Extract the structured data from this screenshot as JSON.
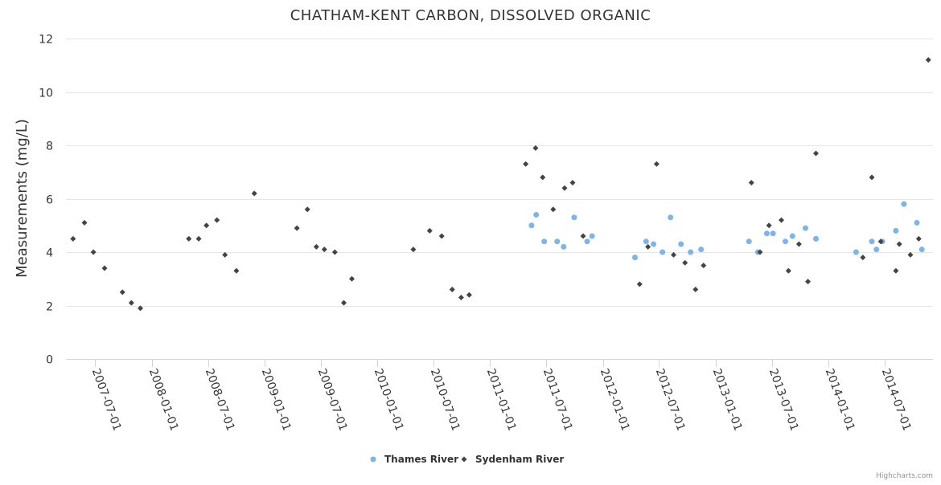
{
  "chart_data": {
    "type": "scatter",
    "title": "CHATHAM-KENT CARBON, DISSOLVED ORGANIC",
    "xlabel": "",
    "ylabel": "Measurements (mg/L)",
    "ylim": [
      0,
      12
    ],
    "yticks": [
      0,
      2,
      4,
      6,
      8,
      10,
      12
    ],
    "grid": true,
    "xlim": [
      "2007-03-29",
      "2014-12-05"
    ],
    "xticks": [
      "2007-07-01",
      "2008-01-01",
      "2008-07-01",
      "2009-01-01",
      "2009-07-01",
      "2010-01-01",
      "2010-07-01",
      "2011-01-01",
      "2011-07-01",
      "2012-01-01",
      "2012-07-01",
      "2013-01-01",
      "2013-07-01",
      "2014-01-01",
      "2014-07-01"
    ],
    "legend_position": "bottom-center",
    "credits": "Highcharts.com",
    "series": [
      {
        "name": "Thames River",
        "color": "#7cb5ec",
        "marker": "circle",
        "points": [
          [
            "2011-05-15",
            5.0
          ],
          [
            "2011-05-30",
            5.4
          ],
          [
            "2011-06-25",
            4.4
          ],
          [
            "2011-08-06",
            4.4
          ],
          [
            "2011-08-27",
            4.2
          ],
          [
            "2011-09-30",
            5.3
          ],
          [
            "2011-11-11",
            4.4
          ],
          [
            "2011-11-27",
            4.6
          ],
          [
            "2012-04-14",
            3.8
          ],
          [
            "2012-05-20",
            4.4
          ],
          [
            "2012-06-13",
            4.3
          ],
          [
            "2012-07-12",
            4.0
          ],
          [
            "2012-08-07",
            5.3
          ],
          [
            "2012-09-10",
            4.3
          ],
          [
            "2012-10-11",
            4.0
          ],
          [
            "2012-11-14",
            4.1
          ],
          [
            "2013-04-18",
            4.4
          ],
          [
            "2013-05-17",
            4.0
          ],
          [
            "2013-06-15",
            4.7
          ],
          [
            "2013-07-05",
            4.7
          ],
          [
            "2013-08-14",
            4.4
          ],
          [
            "2013-09-06",
            4.6
          ],
          [
            "2013-10-18",
            4.9
          ],
          [
            "2013-11-21",
            4.5
          ],
          [
            "2014-03-31",
            4.0
          ],
          [
            "2014-05-21",
            4.4
          ],
          [
            "2014-06-05",
            4.1
          ],
          [
            "2014-06-24",
            4.4
          ],
          [
            "2014-08-07",
            4.8
          ],
          [
            "2014-09-02",
            5.8
          ],
          [
            "2014-10-14",
            5.1
          ],
          [
            "2014-10-30",
            4.1
          ]
        ]
      },
      {
        "name": "Sydenham River",
        "color": "#434348",
        "marker": "diamond",
        "points": [
          [
            "2007-04-21",
            4.5
          ],
          [
            "2007-05-28",
            5.1
          ],
          [
            "2007-06-26",
            4.0
          ],
          [
            "2007-08-01",
            3.4
          ],
          [
            "2007-09-28",
            2.5
          ],
          [
            "2007-10-27",
            2.1
          ],
          [
            "2007-11-25",
            1.9
          ],
          [
            "2008-04-30",
            4.5
          ],
          [
            "2008-06-01",
            4.5
          ],
          [
            "2008-06-26",
            5.0
          ],
          [
            "2008-07-30",
            5.2
          ],
          [
            "2008-08-25",
            3.9
          ],
          [
            "2008-10-01",
            3.3
          ],
          [
            "2008-11-28",
            6.2
          ],
          [
            "2009-04-15",
            4.9
          ],
          [
            "2009-05-19",
            5.6
          ],
          [
            "2009-06-17",
            4.2
          ],
          [
            "2009-07-13",
            4.1
          ],
          [
            "2009-08-16",
            4.0
          ],
          [
            "2009-09-14",
            2.1
          ],
          [
            "2009-10-10",
            3.0
          ],
          [
            "2010-04-27",
            4.1
          ],
          [
            "2010-06-19",
            4.8
          ],
          [
            "2010-07-28",
            4.6
          ],
          [
            "2010-08-31",
            2.6
          ],
          [
            "2010-09-29",
            2.3
          ],
          [
            "2010-10-25",
            2.4
          ],
          [
            "2011-04-26",
            7.3
          ],
          [
            "2011-05-28",
            7.9
          ],
          [
            "2011-06-20",
            6.8
          ],
          [
            "2011-07-24",
            5.6
          ],
          [
            "2011-08-30",
            6.4
          ],
          [
            "2011-09-25",
            6.6
          ],
          [
            "2011-10-29",
            4.6
          ],
          [
            "2012-04-29",
            2.8
          ],
          [
            "2012-05-26",
            4.2
          ],
          [
            "2012-06-23",
            7.3
          ],
          [
            "2012-08-17",
            3.9
          ],
          [
            "2012-09-23",
            3.6
          ],
          [
            "2012-10-27",
            2.6
          ],
          [
            "2012-11-22",
            3.5
          ],
          [
            "2013-04-26",
            6.6
          ],
          [
            "2013-05-24",
            4.0
          ],
          [
            "2013-06-22",
            5.0
          ],
          [
            "2013-08-01",
            5.2
          ],
          [
            "2013-08-24",
            3.3
          ],
          [
            "2013-09-27",
            4.3
          ],
          [
            "2013-10-26",
            2.9
          ],
          [
            "2013-11-21",
            7.7
          ],
          [
            "2014-04-22",
            3.8
          ],
          [
            "2014-05-21",
            6.8
          ],
          [
            "2014-06-19",
            4.4
          ],
          [
            "2014-08-07",
            3.3
          ],
          [
            "2014-08-18",
            4.3
          ],
          [
            "2014-09-23",
            3.9
          ],
          [
            "2014-10-20",
            4.5
          ],
          [
            "2014-11-20",
            11.2
          ]
        ]
      }
    ]
  }
}
